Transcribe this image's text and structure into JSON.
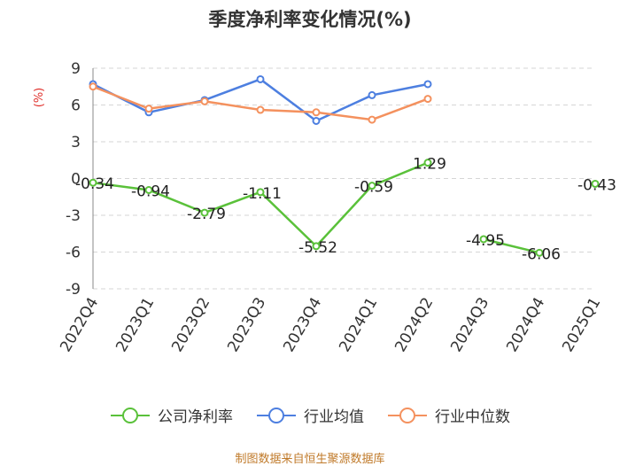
{
  "chart_data": {
    "type": "line",
    "title": "季度净利率变化情况(%)",
    "ylabel": "(%)",
    "xlabel": "",
    "ylim": [
      -9,
      9
    ],
    "yticks": [
      9,
      6,
      3,
      0,
      -3,
      -6,
      -9
    ],
    "categories": [
      "2022Q4",
      "2023Q1",
      "2023Q2",
      "2023Q3",
      "2023Q4",
      "2024Q1",
      "2024Q2",
      "2024Q3",
      "2024Q4",
      "2025Q1"
    ],
    "grid": true,
    "legend_position": "bottom",
    "series": [
      {
        "name": "公司净利率",
        "color": "#5ac13a",
        "values": [
          -0.34,
          -0.94,
          -2.79,
          -1.11,
          -5.52,
          -0.59,
          1.29,
          -4.95,
          -6.06,
          -0.43
        ],
        "labels": [
          "-0.34",
          "-0.94",
          "-2.79",
          "-1.11",
          "-5.52",
          "-0.59",
          "1.29",
          "-4.95",
          "-6.06",
          "-0.43"
        ],
        "gaps_after": [
          6,
          8
        ]
      },
      {
        "name": "行业均值",
        "color": "#4d7fe0",
        "values": [
          7.7,
          5.4,
          6.4,
          8.1,
          4.7,
          6.8,
          7.7,
          null,
          null,
          null
        ]
      },
      {
        "name": "行业中位数",
        "color": "#f4915e",
        "values": [
          7.5,
          5.7,
          6.3,
          5.6,
          5.4,
          4.8,
          6.5,
          null,
          null,
          null
        ]
      }
    ]
  },
  "source_note": "制图数据来自恒生聚源数据库"
}
